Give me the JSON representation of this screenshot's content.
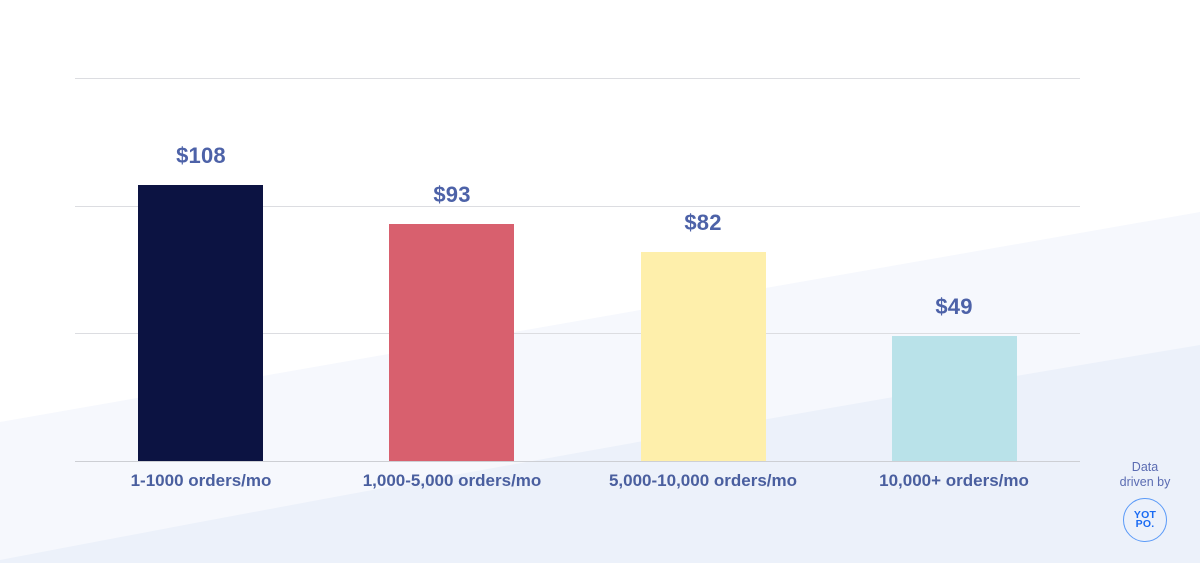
{
  "chart_data": {
    "type": "bar",
    "categories": [
      "1-1000 orders/mo",
      "1,000-5,000 orders/mo",
      "5,000-10,000 orders/mo",
      "10,000+ orders/mo"
    ],
    "values": [
      108,
      93,
      82,
      49
    ],
    "value_labels": [
      "$108",
      "$93",
      "$82",
      "$49"
    ],
    "bar_colors": [
      "#0c1342",
      "#d8606e",
      "#feefab",
      "#b9e2e9"
    ],
    "title": "",
    "xlabel": "",
    "ylabel": "",
    "ylim": [
      0,
      150
    ],
    "gridline_values": [
      0,
      50,
      100,
      150
    ],
    "grid": "horizontal gridlines only, no y-axis tick labels",
    "legend": "none",
    "value_prefix": "$"
  },
  "attribution": {
    "line1": "Data",
    "line2": "driven by",
    "logo_line1": "YOT",
    "logo_line2": "PO."
  },
  "colors": {
    "value_label_text": "#4d62a8",
    "category_label_text": "#4a5f9f",
    "gridline": "#dcdde1",
    "axis_line": "#cdcfd4",
    "attribution_text": "#5b6cb2",
    "logo_blue": "#1a6bf3",
    "logo_circle_border": "#5a9af8",
    "background_wedge_light": "#f6f8fd",
    "background_wedge_deep": "#ecf1fa"
  }
}
